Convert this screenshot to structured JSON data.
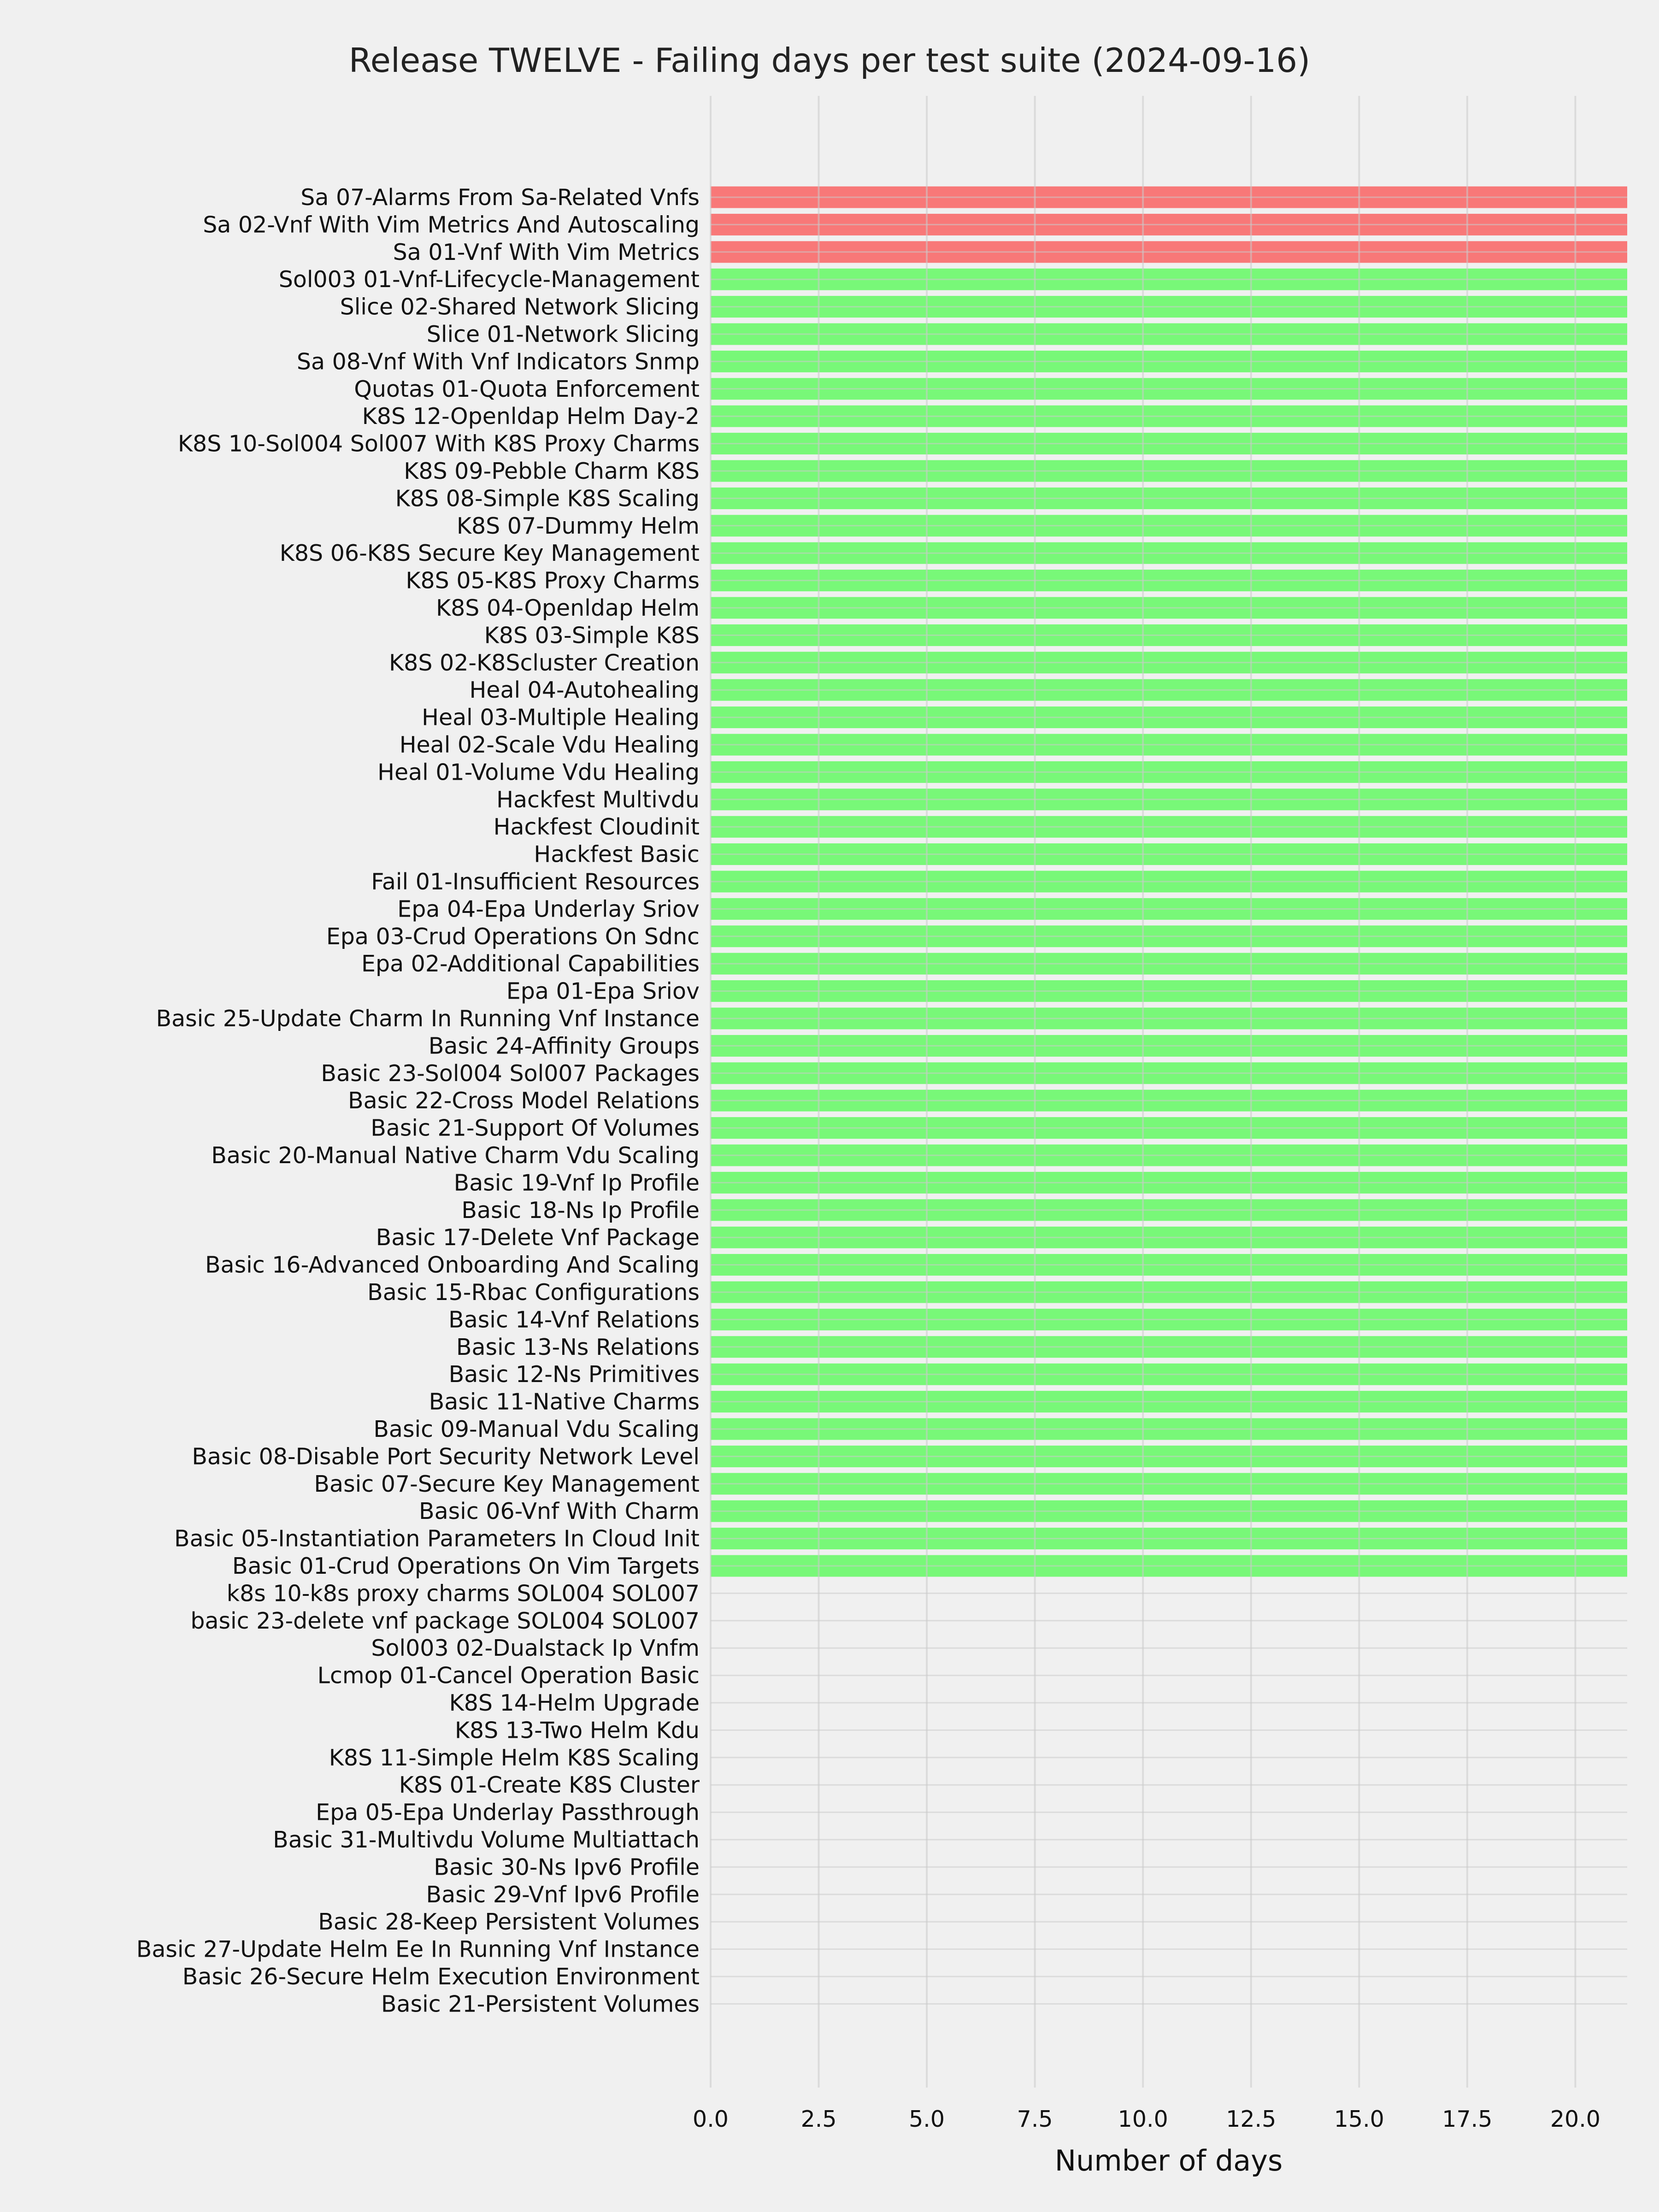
{
  "chart_data": {
    "type": "bar",
    "orientation": "horizontal",
    "title": "Release TWELVE - Failing days per test suite (2024-09-16)",
    "xlabel": "Number of days",
    "ylabel": "",
    "xlim": [
      0,
      21.2
    ],
    "xticks": [
      "0.0",
      "2.5",
      "5.0",
      "7.5",
      "10.0",
      "12.5",
      "15.0",
      "17.5",
      "20.0"
    ],
    "grid": true,
    "colors": {
      "failing": "#ff0000",
      "passing": "#00ff00",
      "bar_alpha": 0.5,
      "background": "#f0f0f0",
      "grid": "#cbcbcb"
    },
    "categories": [
      "Sa 07-Alarms From Sa-Related Vnfs",
      "Sa 02-Vnf With Vim Metrics And Autoscaling",
      "Sa 01-Vnf With Vim Metrics",
      "Sol003 01-Vnf-Lifecycle-Management",
      "Slice 02-Shared Network Slicing",
      "Slice 01-Network Slicing",
      "Sa 08-Vnf With Vnf Indicators Snmp",
      "Quotas 01-Quota Enforcement",
      "K8S 12-Openldap Helm Day-2",
      "K8S 10-Sol004 Sol007 With K8S Proxy Charms",
      "K8S 09-Pebble Charm K8S",
      "K8S 08-Simple K8S Scaling",
      "K8S 07-Dummy Helm",
      "K8S 06-K8S Secure Key Management",
      "K8S 05-K8S Proxy Charms",
      "K8S 04-Openldap Helm",
      "K8S 03-Simple K8S",
      "K8S 02-K8Scluster Creation",
      "Heal 04-Autohealing",
      "Heal 03-Multiple Healing",
      "Heal 02-Scale Vdu Healing",
      "Heal 01-Volume Vdu Healing",
      "Hackfest Multivdu",
      "Hackfest Cloudinit",
      "Hackfest Basic",
      "Fail 01-Insufficient Resources",
      "Epa 04-Epa Underlay Sriov",
      "Epa 03-Crud Operations On Sdnc",
      "Epa 02-Additional Capabilities",
      "Epa 01-Epa Sriov",
      "Basic 25-Update Charm In Running Vnf Instance",
      "Basic 24-Affinity Groups",
      "Basic 23-Sol004 Sol007 Packages",
      "Basic 22-Cross Model Relations",
      "Basic 21-Support Of Volumes",
      "Basic 20-Manual Native Charm Vdu Scaling",
      "Basic 19-Vnf Ip Profile",
      "Basic 18-Ns Ip Profile",
      "Basic 17-Delete Vnf Package",
      "Basic 16-Advanced Onboarding And Scaling",
      "Basic 15-Rbac Configurations",
      "Basic 14-Vnf Relations",
      "Basic 13-Ns Relations",
      "Basic 12-Ns Primitives",
      "Basic 11-Native Charms",
      "Basic 09-Manual Vdu Scaling",
      "Basic 08-Disable Port Security Network Level",
      "Basic 07-Secure Key Management",
      "Basic 06-Vnf With Charm",
      "Basic 05-Instantiation Parameters In Cloud Init",
      "Basic 01-Crud Operations On Vim Targets",
      "k8s 10-k8s proxy charms SOL004 SOL007",
      "basic 23-delete vnf package SOL004 SOL007",
      "Sol003 02-Dualstack Ip Vnfm",
      "Lcmop 01-Cancel Operation Basic",
      "K8S 14-Helm Upgrade",
      "K8S 13-Two Helm Kdu",
      "K8S 11-Simple Helm K8S Scaling",
      "K8S 01-Create K8S Cluster",
      "Epa 05-Epa Underlay Passthrough",
      "Basic 31-Multivdu Volume Multiattach",
      "Basic 30-Ns Ipv6 Profile",
      "Basic 29-Vnf Ipv6 Profile",
      "Basic 28-Keep Persistent Volumes",
      "Basic 27-Update Helm Ee In Running Vnf Instance",
      "Basic 26-Secure Helm Execution Environment",
      "Basic 21-Persistent Volumes"
    ],
    "values": [
      21.2,
      21.2,
      21.2,
      21.2,
      21.2,
      21.2,
      21.2,
      21.2,
      21.2,
      21.2,
      21.2,
      21.2,
      21.2,
      21.2,
      21.2,
      21.2,
      21.2,
      21.2,
      21.2,
      21.2,
      21.2,
      21.2,
      21.2,
      21.2,
      21.2,
      21.2,
      21.2,
      21.2,
      21.2,
      21.2,
      21.2,
      21.2,
      21.2,
      21.2,
      21.2,
      21.2,
      21.2,
      21.2,
      21.2,
      21.2,
      21.2,
      21.2,
      21.2,
      21.2,
      21.2,
      21.2,
      21.2,
      21.2,
      21.2,
      21.2,
      21.2,
      0,
      0,
      0,
      0,
      0,
      0,
      0,
      0,
      0,
      0,
      0,
      0,
      0,
      0,
      0,
      0
    ],
    "status": [
      "failing",
      "failing",
      "failing",
      "passing",
      "passing",
      "passing",
      "passing",
      "passing",
      "passing",
      "passing",
      "passing",
      "passing",
      "passing",
      "passing",
      "passing",
      "passing",
      "passing",
      "passing",
      "passing",
      "passing",
      "passing",
      "passing",
      "passing",
      "passing",
      "passing",
      "passing",
      "passing",
      "passing",
      "passing",
      "passing",
      "passing",
      "passing",
      "passing",
      "passing",
      "passing",
      "passing",
      "passing",
      "passing",
      "passing",
      "passing",
      "passing",
      "passing",
      "passing",
      "passing",
      "passing",
      "passing",
      "passing",
      "passing",
      "passing",
      "passing",
      "passing",
      "none",
      "none",
      "none",
      "none",
      "none",
      "none",
      "none",
      "none",
      "none",
      "none",
      "none",
      "none",
      "none",
      "none",
      "none",
      "none"
    ]
  }
}
